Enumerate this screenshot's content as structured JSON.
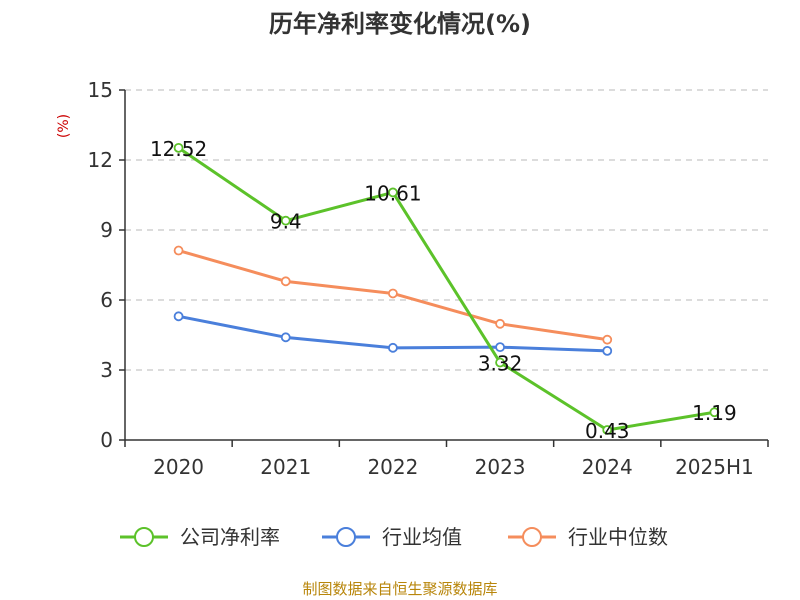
{
  "chart_data": {
    "type": "line",
    "title": "历年净利率变化情况(%)",
    "ylabel": "(%)",
    "categories": [
      "2020",
      "2021",
      "2022",
      "2023",
      "2024",
      "2025H1"
    ],
    "ylim": [
      0,
      15
    ],
    "yticks": [
      0,
      3,
      6,
      9,
      12,
      15
    ],
    "grid": true,
    "legend_position": "bottom",
    "series": [
      {
        "name": "公司净利率",
        "color": "#5cc22a",
        "values": [
          12.52,
          9.4,
          10.61,
          3.32,
          0.43,
          1.19
        ],
        "labels": [
          "12.52",
          "9.4",
          "10.61",
          "3.32",
          "0.43",
          "1.19"
        ]
      },
      {
        "name": "行业均值",
        "color": "#4a7fdb",
        "values": [
          5.3,
          4.4,
          3.95,
          3.98,
          3.82,
          null
        ]
      },
      {
        "name": "行业中位数",
        "color": "#f58d5c",
        "values": [
          8.12,
          6.8,
          6.28,
          4.98,
          4.3,
          null
        ]
      }
    ]
  },
  "footer": {
    "source": "制图数据来自恒生聚源数据库"
  }
}
